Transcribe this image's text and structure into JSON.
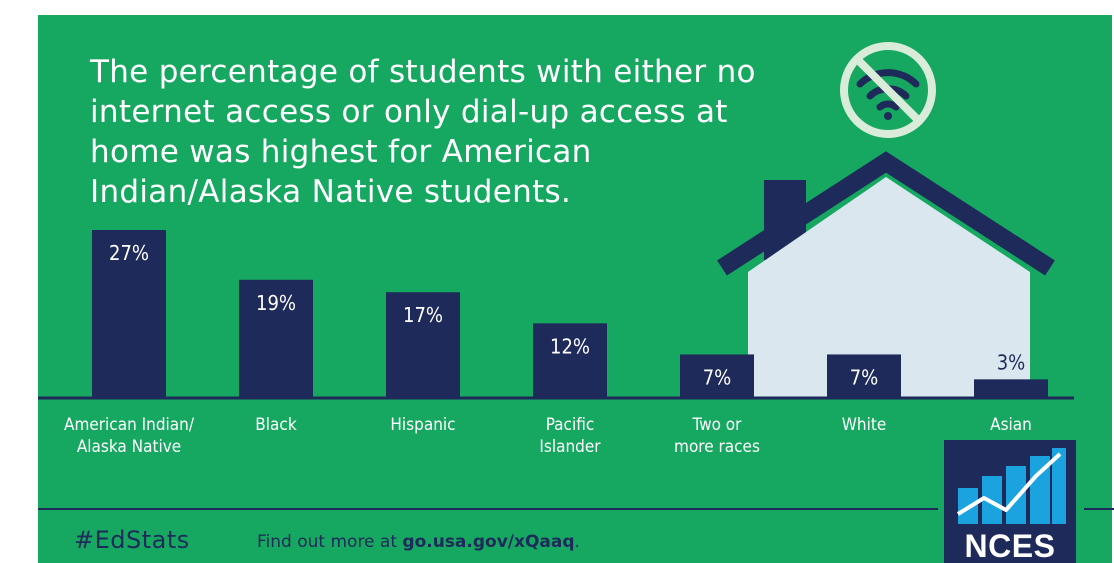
{
  "headline": "The percentage of students with either no internet access or only dial-up access at home was highest for American Indian/Alaska Native students.",
  "chart_data": {
    "type": "bar",
    "categories": [
      [
        "American Indian/",
        "Alaska Native"
      ],
      [
        "Black"
      ],
      [
        "Hispanic"
      ],
      [
        "Pacific",
        "Islander"
      ],
      [
        "Two or",
        "more races"
      ],
      [
        "White"
      ],
      [
        "Asian"
      ]
    ],
    "values": [
      27,
      19,
      17,
      12,
      7,
      7,
      3
    ],
    "value_labels": [
      "27%",
      "19%",
      "17%",
      "12%",
      "7%",
      "7%",
      "3%"
    ],
    "title": "",
    "xlabel": "",
    "ylabel": "",
    "ylim": [
      0,
      27
    ],
    "grid": false,
    "legend": "none"
  },
  "footer": {
    "hashtag": "#EdStats",
    "more_prefix": "Find out more at ",
    "more_link": "go.usa.gov/xQaaq",
    "more_suffix": "."
  },
  "logo": {
    "text": "NCES"
  },
  "icons": {
    "no_wifi": "no-wifi-icon",
    "house": "house-illustration",
    "logo_chart": "nces-chart-icon"
  },
  "colors": {
    "background": "#16a860",
    "bar": "#1e2a5a",
    "text_light": "#ffffff",
    "text_dark": "#1e2a5a",
    "house_body": "#dbe7ef",
    "icon_circle": "#d8ecd9",
    "logo_accent": "#1ba3e0"
  }
}
